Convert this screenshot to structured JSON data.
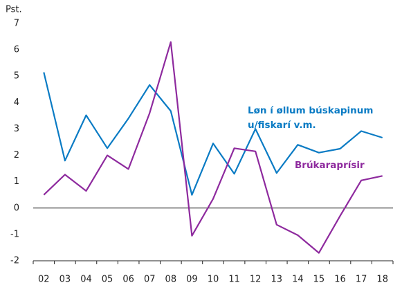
{
  "chart_data": {
    "type": "line",
    "y_unit": "Pst.",
    "categories": [
      "02",
      "03",
      "04",
      "05",
      "06",
      "07",
      "08",
      "09",
      "10",
      "11",
      "12",
      "13",
      "14",
      "15",
      "16",
      "17",
      "18"
    ],
    "series": [
      {
        "name": "Løn í øllum búskapinum u/fiskarí v.m.",
        "color": "#0a7bc4",
        "values": [
          5.15,
          1.8,
          3.52,
          2.27,
          3.4,
          4.67,
          3.68,
          0.5,
          2.45,
          1.3,
          3.0,
          1.33,
          2.4,
          2.1,
          2.25,
          2.92,
          2.67
        ]
      },
      {
        "name": "Brúkaraprísir",
        "color": "#8e2a9e",
        "values": [
          0.5,
          1.27,
          0.65,
          2.0,
          1.48,
          3.6,
          6.3,
          -1.05,
          0.35,
          2.27,
          2.15,
          -0.63,
          -1.03,
          -1.7,
          -0.3,
          1.05,
          1.22
        ]
      }
    ],
    "ylim": [
      -2,
      7
    ],
    "yticks": [
      -2,
      -1,
      0,
      1,
      2,
      3,
      4,
      5,
      6,
      7
    ],
    "grid": false
  }
}
